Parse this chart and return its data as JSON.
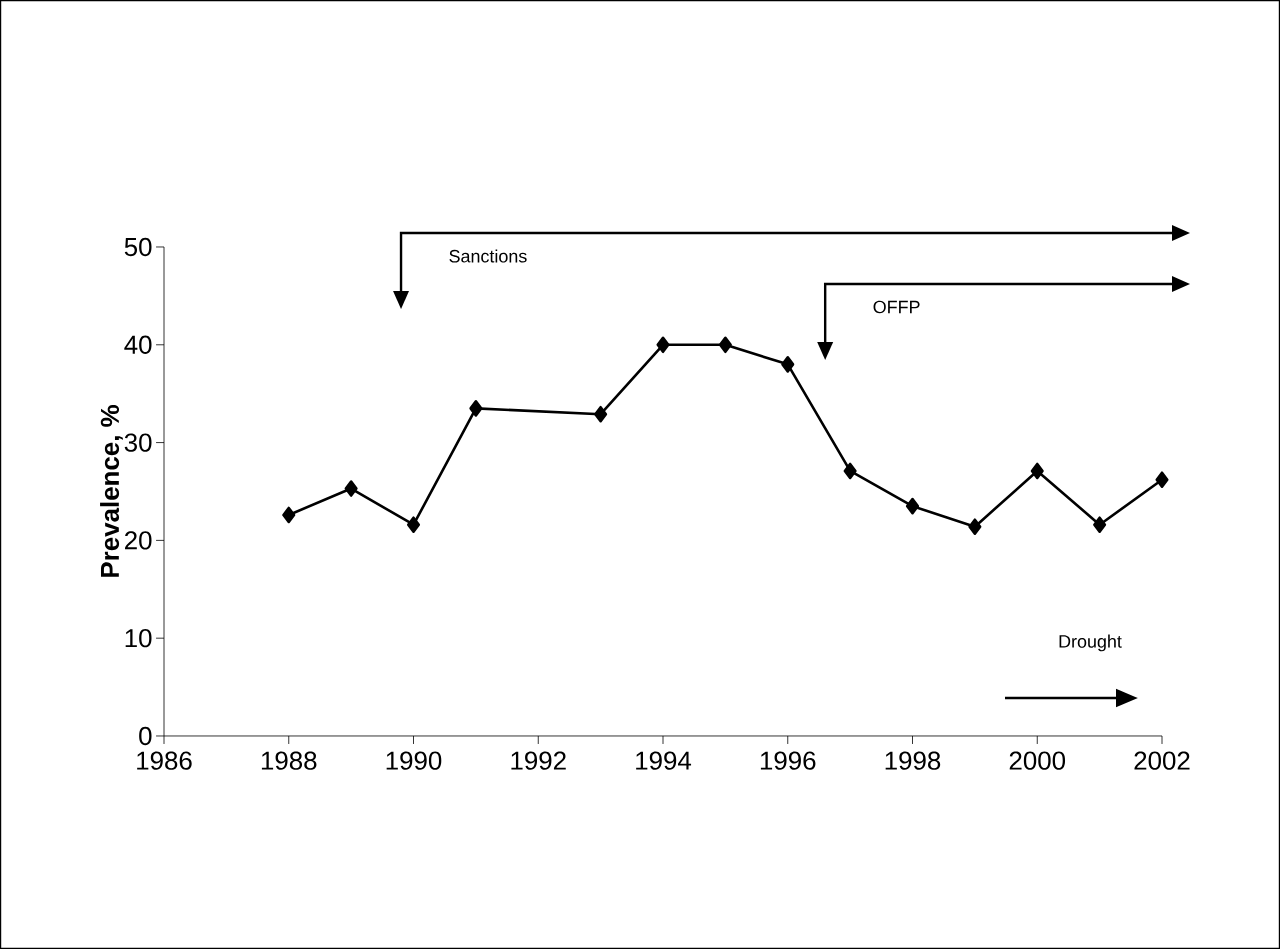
{
  "chart_data": {
    "type": "line",
    "ylabel": "Prevalence, %",
    "x": [
      1988,
      1989,
      1990,
      1991,
      1993,
      1994,
      1995,
      1996,
      1997,
      1998,
      1999,
      2000,
      2001,
      2002
    ],
    "series": [
      {
        "color": "#000000",
        "values": [
          22.6,
          25.3,
          21.6,
          33.5,
          32.9,
          40.0,
          40.0,
          38.0,
          27.1,
          23.5,
          21.4,
          27.1,
          21.6,
          26.2
        ]
      }
    ],
    "xlim": [
      1986,
      2002
    ],
    "xticks": [
      1986,
      1988,
      1990,
      1992,
      1994,
      1996,
      1998,
      2000,
      2002
    ],
    "ylim": [
      0,
      50
    ],
    "yticks": [
      0,
      10,
      20,
      30,
      40,
      50
    ],
    "marker": "diamond",
    "line_style": "solid",
    "grid": false,
    "ref_lines": [
      {
        "axis": "x",
        "value": 1989.8,
        "label": "Sanctions"
      },
      {
        "axis": "x",
        "value": 1996.6,
        "label": "OFFP"
      }
    ],
    "annotations": [
      "Drought"
    ]
  }
}
